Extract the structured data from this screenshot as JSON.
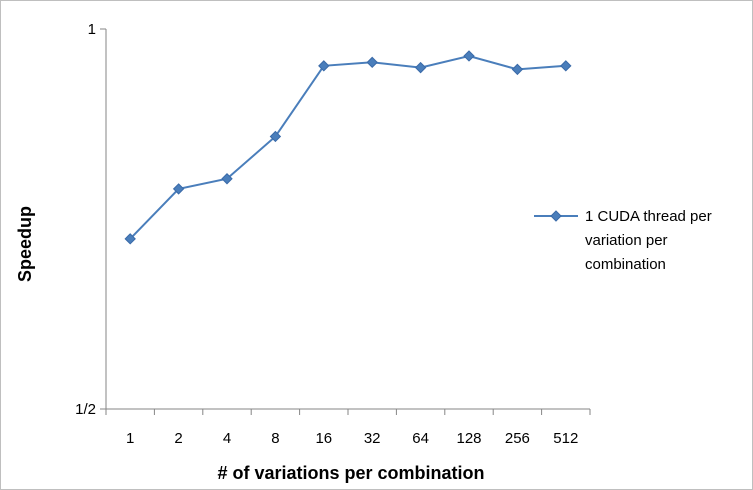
{
  "chart_data": {
    "type": "line",
    "xlabel": "# of variations per combination",
    "ylabel": "Speedup",
    "categories": [
      "1",
      "2",
      "4",
      "8",
      "16",
      "32",
      "64",
      "128",
      "256",
      "512"
    ],
    "yscale": "log2",
    "ylim": [
      0.5,
      1
    ],
    "yticks": [
      {
        "value": 1,
        "label": "1"
      },
      {
        "value": 0.5,
        "label": "1/2"
      }
    ],
    "grid": false,
    "legend_position": "right",
    "series": [
      {
        "name": "1 CUDA thread per variation per combination",
        "legend_lines": [
          "1 CUDA thread per",
          "variation per",
          "combination"
        ],
        "color": "#4a7ebb",
        "marker": "diamond",
        "values": [
          0.682,
          0.747,
          0.761,
          0.822,
          0.935,
          0.941,
          0.932,
          0.952,
          0.929,
          0.935
        ]
      }
    ]
  }
}
